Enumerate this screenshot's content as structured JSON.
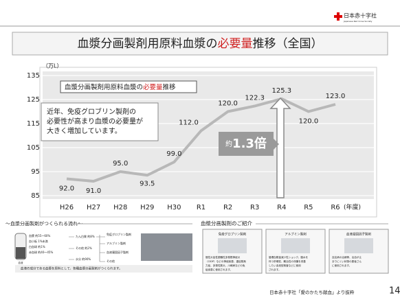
{
  "header": {
    "logo": "日本赤十字社",
    "logo_sub": "Japanese Red Cross Society",
    "title_parts": [
      "血漿分画製剤用原料血漿の",
      "必要量",
      "推移（全国）"
    ]
  },
  "chart_data": {
    "type": "line",
    "title_parts": [
      "血漿分画製剤用原料血漿の",
      "必要量",
      "推移"
    ],
    "y_label": "（万L）",
    "x_unit": "(年度)",
    "categories": [
      "H26",
      "H27",
      "H28",
      "H29",
      "H30",
      "R1",
      "R2",
      "R3",
      "R4",
      "R5",
      "R6"
    ],
    "values": [
      92.0,
      91.0,
      95.0,
      93.5,
      99.0,
      112.0,
      120.0,
      122.3,
      125.3,
      120.0,
      123.0
    ],
    "value_labels": [
      "92.0",
      "91.0",
      "95.0",
      "93.5",
      "99.0",
      "112.0",
      "120.0",
      "122.3",
      "125.3",
      "120.0",
      "123.0"
    ],
    "color": "#b8b8b8",
    "ylim": [
      85,
      135
    ],
    "yticks": [
      85,
      95,
      105,
      115,
      125,
      135
    ],
    "grid": true,
    "annotations": [
      "近年、免疫グロブリン製剤の",
      "必要性が高まり血漿の必要量が",
      "大きく増加しています。"
    ],
    "callout_prefix": "約",
    "callout": "1.3倍"
  },
  "flow": {
    "title": "～血漿分画製剤がつくられる流れ～",
    "parts": [
      "血漿 約55～60%",
      "血小板 1%未満",
      "白血球 約1%",
      "赤血球 約40～45%"
    ],
    "base": "血液",
    "steps": [
      "たん白質 約8%",
      "その他 約2%",
      "水分 約90%"
    ],
    "products": [
      "免疫グロブリン製剤",
      "アルブミン製剤",
      "血液凝固因子製剤",
      "その他"
    ],
    "note": "血液の成分である血漿を原料として、各種血漿分画製剤がつくられます。"
  },
  "products": {
    "title": "血漿分画製剤のご紹介",
    "items": [
      {
        "name": "免疫グロブリン製剤",
        "desc": [
          "慢性炎症性脱髄性多発根神経炎",
          "（CIDP）などの神経疾患、重症筋無",
          "力症、多発性筋炎、川崎病などの免",
          "疫疾患に使用されます。"
        ]
      },
      {
        "name": "アルブミン製剤",
        "desc": [
          "循環血漿量減少性ショック、腹水を",
          "伴う肝硬変、難治性の浮腫を改善",
          "したい血液型検査などに使用",
          "されます。"
        ]
      },
      {
        "name": "血液凝固因子製剤",
        "desc": [
          "血友病の治療等、出血が止",
          "まりにくい状態の患者さん",
          "に使用されます。"
        ]
      }
    ]
  },
  "footer": {
    "source": "日本赤十字社「愛のかたち献血」より抜粋",
    "page": "14"
  }
}
